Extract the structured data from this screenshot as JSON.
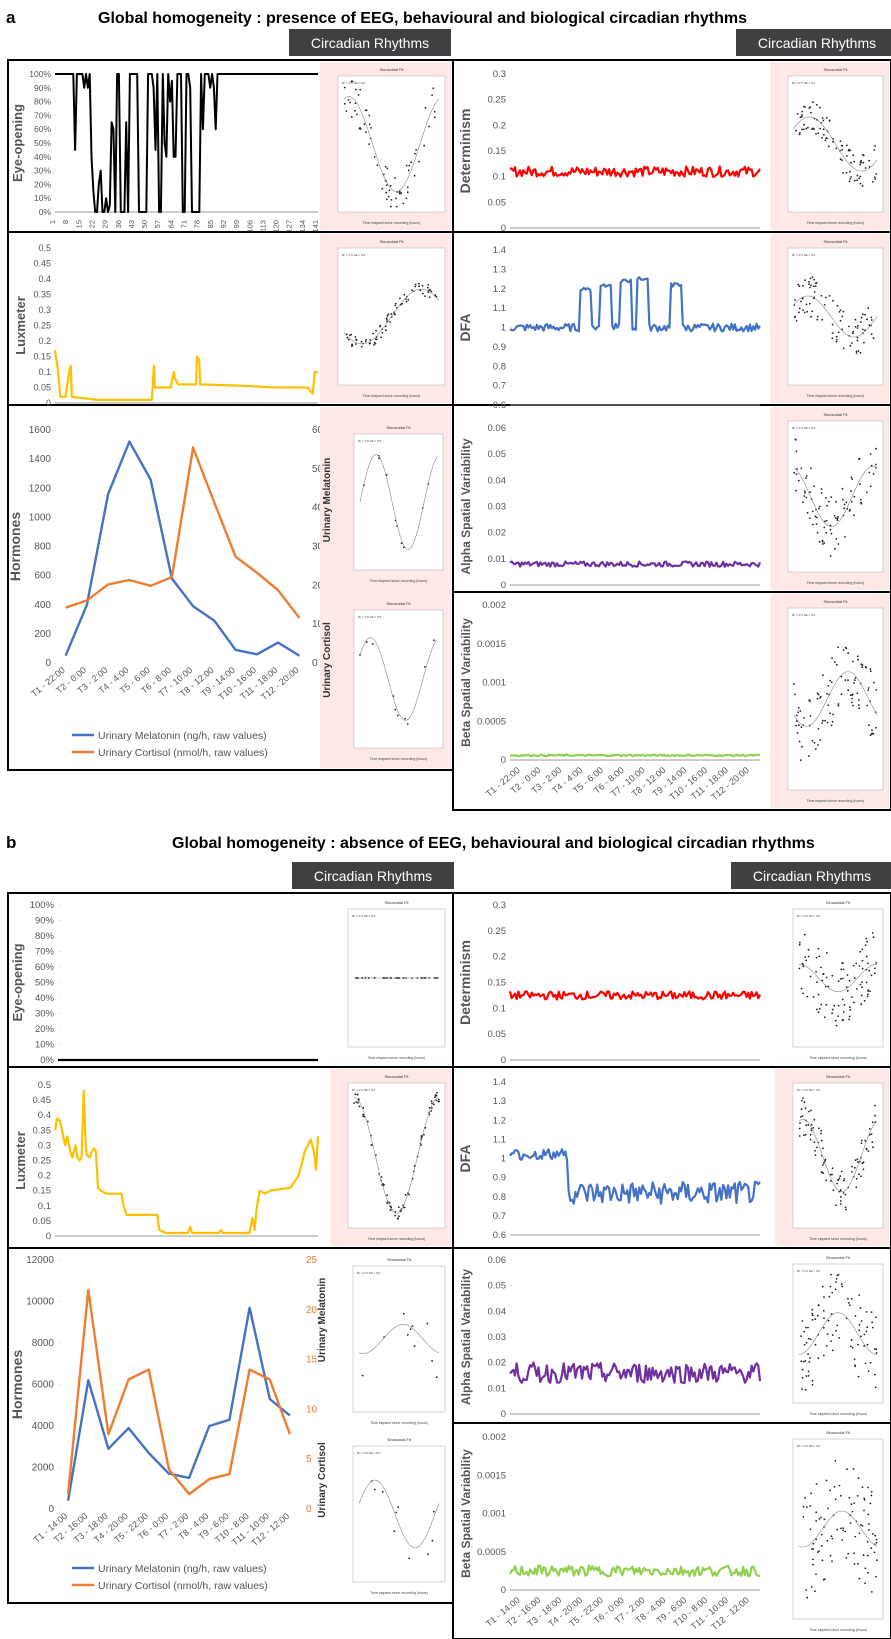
{
  "panels": [
    {
      "letter": "a",
      "title": "Global homogeneity : presence of EEG, behavioural and biological circadian rhythms",
      "banner": "Circadian Rhythms",
      "small_text": {
        "fit_title": "Sinusoidal Fit",
        "fit_xlabel": "Time elapsed since recording (hours)",
        "fit_stats": "R² = 0.5   SE = 0.0"
      }
    },
    {
      "letter": "b",
      "title": "Global homogeneity : absence of EEG, behavioural and biological circadian rhythms",
      "banner": "Circadian Rhythms",
      "small_text": {
        "fit_title": "Sinusoidal Fit",
        "fit_xlabel": "Time elapsed since recording (hours)",
        "fit_stats": "R² = 0.0   SE = 0.0"
      }
    }
  ],
  "chart_data": [
    {
      "id": "a-eye",
      "type": "line",
      "ylabel": "Eye-opening",
      "unit": "percent",
      "color": "#000000",
      "ylim": [
        0,
        100
      ],
      "yticks": [
        "0%",
        "10%",
        "20%",
        "30%",
        "40%",
        "50%",
        "60%",
        "70%",
        "80%",
        "90%",
        "100%"
      ],
      "xticks": [
        "1",
        "8",
        "15",
        "22",
        "29",
        "36",
        "43",
        "50",
        "57",
        "64",
        "71",
        "78",
        "85",
        "92",
        "99",
        "106",
        "113",
        "120",
        "127",
        "134",
        "141"
      ],
      "x_range": [
        1,
        145
      ],
      "values": [
        100,
        100,
        100,
        100,
        100,
        100,
        100,
        100,
        100,
        100,
        100,
        100,
        100,
        100,
        100,
        100,
        100,
        100,
        100,
        100,
        100,
        100,
        100,
        100,
        100,
        100,
        100,
        100,
        100,
        100,
        100,
        100,
        100,
        100,
        100,
        100,
        100,
        100,
        100,
        100,
        100,
        100,
        100,
        100,
        100,
        100,
        100,
        100,
        100,
        100,
        100,
        100,
        100,
        100,
        100,
        100,
        100,
        100,
        100,
        100,
        100,
        100,
        100,
        100,
        100,
        100,
        100,
        100,
        100,
        100,
        100,
        100,
        100,
        100,
        100,
        100,
        100,
        100,
        100,
        100,
        100,
        100,
        100,
        100,
        100,
        100,
        100,
        100,
        100,
        100,
        100,
        100,
        100,
        100,
        100,
        100,
        100,
        100,
        100,
        100,
        100,
        100,
        100,
        100,
        100,
        100,
        100,
        100,
        100,
        100,
        100,
        100,
        100,
        100,
        100,
        100,
        100,
        100,
        100,
        100,
        100,
        100,
        100,
        100,
        100,
        100,
        100,
        100,
        100,
        100,
        100,
        100,
        100,
        100,
        100,
        100,
        100,
        100,
        100,
        100,
        100,
        100,
        100,
        100,
        100
      ],
      "overrides": [
        [
          8,
          100
        ],
        [
          10,
          100
        ],
        [
          11,
          45
        ],
        [
          12,
          100
        ],
        [
          14,
          100
        ],
        [
          15,
          100
        ],
        [
          16,
          90
        ],
        [
          17,
          100
        ],
        [
          18,
          90
        ],
        [
          19,
          100
        ],
        [
          20,
          40
        ],
        [
          21,
          15
        ],
        [
          22,
          0
        ],
        [
          23,
          0
        ],
        [
          24,
          20
        ],
        [
          25,
          30
        ],
        [
          26,
          0
        ],
        [
          27,
          0
        ],
        [
          28,
          10
        ],
        [
          29,
          0
        ],
        [
          30,
          5
        ],
        [
          31,
          65
        ],
        [
          32,
          60
        ],
        [
          33,
          0
        ],
        [
          34,
          100
        ],
        [
          35,
          100
        ],
        [
          36,
          0
        ],
        [
          37,
          0
        ],
        [
          38,
          0
        ],
        [
          39,
          65
        ],
        [
          40,
          0
        ],
        [
          41,
          100
        ],
        [
          42,
          100
        ],
        [
          43,
          100
        ],
        [
          44,
          100
        ],
        [
          45,
          100
        ],
        [
          46,
          0
        ],
        [
          47,
          0
        ],
        [
          48,
          0
        ],
        [
          49,
          0
        ],
        [
          50,
          0
        ],
        [
          51,
          100
        ],
        [
          52,
          100
        ],
        [
          53,
          100
        ],
        [
          54,
          90
        ],
        [
          55,
          45
        ],
        [
          56,
          100
        ],
        [
          57,
          0
        ],
        [
          58,
          0
        ],
        [
          59,
          100
        ],
        [
          60,
          50
        ],
        [
          61,
          40
        ],
        [
          62,
          100
        ],
        [
          63,
          80
        ],
        [
          64,
          95
        ],
        [
          65,
          40
        ],
        [
          66,
          40
        ],
        [
          67,
          100
        ],
        [
          68,
          100
        ],
        [
          69,
          100
        ],
        [
          70,
          0
        ],
        [
          71,
          0
        ],
        [
          72,
          100
        ],
        [
          73,
          100
        ],
        [
          74,
          90
        ],
        [
          75,
          0
        ],
        [
          76,
          0
        ],
        [
          77,
          0
        ],
        [
          78,
          0
        ],
        [
          79,
          0
        ],
        [
          80,
          100
        ],
        [
          81,
          60
        ],
        [
          82,
          100
        ],
        [
          83,
          100
        ],
        [
          84,
          100
        ],
        [
          85,
          90
        ],
        [
          86,
          100
        ],
        [
          87,
          90
        ],
        [
          88,
          60
        ],
        [
          89,
          100
        ]
      ]
    },
    {
      "id": "a-lux",
      "type": "line",
      "ylabel": "Luxmeter",
      "color": "#FFC000",
      "ylim": [
        0,
        0.5
      ],
      "yticks": [
        "0",
        "0.05",
        "0.1",
        "0.15",
        "0.2",
        "0.25",
        "0.3",
        "0.35",
        "0.4",
        "0.45",
        "0.5"
      ],
      "segments": [
        [
          0,
          0.17
        ],
        [
          3,
          0.1
        ],
        [
          5,
          0.02
        ],
        [
          10,
          0.02
        ],
        [
          14,
          0.11
        ],
        [
          15,
          0.12
        ],
        [
          16,
          0.02
        ],
        [
          40,
          0.01
        ],
        [
          92,
          0.01
        ],
        [
          94,
          0.12
        ],
        [
          95,
          0.05
        ],
        [
          110,
          0.05
        ],
        [
          113,
          0.1
        ],
        [
          114,
          0.08
        ],
        [
          117,
          0.06
        ],
        [
          130,
          0.06
        ],
        [
          134,
          0.06
        ],
        [
          135,
          0.15
        ],
        [
          137,
          0.14
        ],
        [
          138,
          0.06
        ],
        [
          180,
          0.055
        ],
        [
          210,
          0.05
        ],
        [
          240,
          0.05
        ],
        [
          245,
          0.03
        ],
        [
          247,
          0.1
        ],
        [
          250,
          0.1
        ]
      ]
    },
    {
      "id": "a-hormones",
      "type": "line",
      "ylabel": "Hormones",
      "categories": [
        "T1 - 22:00",
        "T2 - 0:00",
        "T3 - 2:00",
        "T4 - 4:00",
        "T5 - 6:00",
        "T6 - 8:00",
        "T7 - 10:00",
        "T8 - 12:00",
        "T9 - 14:00",
        "T10 - 16:00",
        "T11 - 18:00",
        "T12 - 20:00"
      ],
      "ylim": [
        0,
        1600
      ],
      "yticks": [
        "0",
        "200",
        "400",
        "600",
        "800",
        "1000",
        "1200",
        "1400",
        "1600"
      ],
      "y2ticks": [
        "0",
        "10",
        "20",
        "30",
        "40",
        "50",
        "60"
      ],
      "series": [
        {
          "name": "Urinary Melatonin (ng/h, raw values)",
          "color": "#4472C4",
          "values": [
            50,
            400,
            1160,
            1520,
            1260,
            580,
            390,
            290,
            90,
            60,
            140,
            50
          ]
        },
        {
          "name": "Urinary Cortisol (nmol/h, raw values)",
          "color": "#ED7D31",
          "values": [
            380,
            430,
            540,
            570,
            530,
            590,
            1480,
            1100,
            730,
            620,
            500,
            310
          ]
        }
      ],
      "fit_labels": [
        "Urinary Melatonin",
        "Urinary Cortisol"
      ]
    },
    {
      "id": "a-det",
      "type": "line",
      "ylabel": "Determinism",
      "color": "#FF0000",
      "ylim": [
        0,
        0.3
      ],
      "yticks": [
        "0",
        "0.05",
        "0.1",
        "0.15",
        "0.2",
        "0.25",
        "0.3"
      ],
      "base": 0.11,
      "noise": 0.01
    },
    {
      "id": "a-dfa",
      "type": "line",
      "ylabel": "DFA",
      "color": "#4472C4",
      "ylim": [
        0.6,
        1.4
      ],
      "yticks": [
        "0.6",
        "0.7",
        "0.8",
        "0.9",
        "1",
        "1.1",
        "1.2",
        "1.3",
        "1.4"
      ],
      "base": 1.0,
      "noise": 0.02
    },
    {
      "id": "a-alpha",
      "type": "line",
      "ylabel": "Alpha Spatial Variability",
      "color": "#7030A0",
      "ylim": [
        0,
        0.06
      ],
      "yticks": [
        "0",
        "0.01",
        "0.02",
        "0.03",
        "0.04",
        "0.05",
        "0.06"
      ],
      "base": 0.008,
      "noise": 0.001
    },
    {
      "id": "a-beta",
      "type": "line",
      "ylabel": "Beta Spatial Variability",
      "color": "#92D050",
      "ylim": [
        0,
        0.002
      ],
      "yticks": [
        "0",
        "0.0005",
        "0.001",
        "0.0015",
        "0.002"
      ],
      "base": 6e-05,
      "noise": 1e-05,
      "categories": [
        "T1 - 22:00",
        "T2 - 0:00",
        "T3 - 2:00",
        "T4 - 4:00",
        "T5 - 6:00",
        "T6 - 8:00",
        "T7 - 10:00",
        "T8 - 12:00",
        "T9 - 14:00",
        "T10 - 16:00",
        "T11 - 18:00",
        "T12 - 20:00"
      ]
    },
    {
      "id": "b-eye",
      "type": "line",
      "ylabel": "Eye-opening",
      "color": "#000000",
      "ylim": [
        0,
        100
      ],
      "yticks": [
        "0%",
        "10%",
        "20%",
        "30%",
        "40%",
        "50%",
        "60%",
        "70%",
        "80%",
        "90%",
        "100%"
      ],
      "base": 0,
      "noise": 0
    },
    {
      "id": "b-lux",
      "type": "line",
      "ylabel": "Luxmeter",
      "color": "#FFC000",
      "ylim": [
        0,
        0.5
      ],
      "yticks": [
        "0",
        "0.05",
        "0.1",
        "0.15",
        "0.2",
        "0.25",
        "0.3",
        "0.35",
        "0.4",
        "0.45",
        "0.5"
      ],
      "segments": [
        [
          0,
          0.35
        ],
        [
          2,
          0.39
        ],
        [
          5,
          0.38
        ],
        [
          8,
          0.33
        ],
        [
          10,
          0.3
        ],
        [
          12,
          0.33
        ],
        [
          15,
          0.28
        ],
        [
          17,
          0.26
        ],
        [
          20,
          0.3
        ],
        [
          22,
          0.26
        ],
        [
          24,
          0.25
        ],
        [
          26,
          0.26
        ],
        [
          28,
          0.48
        ],
        [
          30,
          0.3
        ],
        [
          31,
          0.27
        ],
        [
          34,
          0.26
        ],
        [
          36,
          0.28
        ],
        [
          38,
          0.29
        ],
        [
          40,
          0.28
        ],
        [
          42,
          0.16
        ],
        [
          45,
          0.15
        ],
        [
          50,
          0.14
        ],
        [
          60,
          0.14
        ],
        [
          65,
          0.14
        ],
        [
          67,
          0.1
        ],
        [
          70,
          0.07
        ],
        [
          100,
          0.07
        ],
        [
          102,
          0.02
        ],
        [
          108,
          0.01
        ],
        [
          130,
          0.01
        ],
        [
          132,
          0.03
        ],
        [
          134,
          0.01
        ],
        [
          160,
          0.01
        ],
        [
          162,
          0.02
        ],
        [
          164,
          0.01
        ],
        [
          190,
          0.01
        ],
        [
          193,
          0.06
        ],
        [
          195,
          0.02
        ],
        [
          197,
          0.09
        ],
        [
          200,
          0.15
        ],
        [
          205,
          0.14
        ],
        [
          210,
          0.15
        ],
        [
          230,
          0.16
        ],
        [
          238,
          0.2
        ],
        [
          242,
          0.25
        ],
        [
          244,
          0.28
        ],
        [
          247,
          0.3
        ],
        [
          250,
          0.32
        ],
        [
          253,
          0.28
        ],
        [
          255,
          0.22
        ],
        [
          257,
          0.33
        ]
      ]
    },
    {
      "id": "b-hormones",
      "type": "line",
      "ylabel": "Hormones",
      "categories": [
        "T1 - 14:00",
        "T2 - 16:00",
        "T3 - 18:00",
        "T4 - 20:00",
        "T5 - 22:00",
        "T6 - 0:00",
        "T7 - 2:00",
        "T8 - 4:00",
        "T9 - 6:00",
        "T10 - 8:00",
        "T11 - 10:00",
        "T12 - 12:00"
      ],
      "ylim": [
        0,
        12000
      ],
      "yticks": [
        "0",
        "2000",
        "4000",
        "6000",
        "8000",
        "10000",
        "12000"
      ],
      "y2ticks": [
        "0",
        "5",
        "10",
        "15",
        "20",
        "25"
      ],
      "series": [
        {
          "name": "Urinary Melatonin (ng/h, raw values)",
          "color": "#4472C4",
          "values": [
            400,
            6200,
            2900,
            3900,
            2700,
            1700,
            1500,
            4000,
            4300,
            9700,
            5300,
            4500
          ]
        },
        {
          "name": "Urinary Cortisol (nmol/h, raw values)",
          "color": "#ED7D31",
          "values": [
            1.5,
            22,
            7.5,
            13,
            14,
            4,
            1.5,
            3,
            3.5,
            14,
            13,
            7.5
          ],
          "axis": "right",
          "y2lim": [
            0,
            25
          ]
        }
      ],
      "fit_labels": [
        "Urinary Melatonin",
        "Urinary Cortisol"
      ]
    },
    {
      "id": "b-det",
      "type": "line",
      "ylabel": "Determinism",
      "color": "#FF0000",
      "ylim": [
        0,
        0.3
      ],
      "yticks": [
        "0",
        "0.05",
        "0.1",
        "0.15",
        "0.2",
        "0.25",
        "0.3"
      ],
      "base": 0.125,
      "noise": 0.008
    },
    {
      "id": "b-dfa",
      "type": "line",
      "ylabel": "DFA",
      "color": "#4472C4",
      "ylim": [
        0.6,
        1.4
      ],
      "yticks": [
        "0.6",
        "0.7",
        "0.8",
        "0.9",
        "1",
        "1.1",
        "1.2",
        "1.3",
        "1.4"
      ],
      "base": 0.82,
      "noise": 0.06
    },
    {
      "id": "b-alpha",
      "type": "line",
      "ylabel": "Alpha Spatial Variability",
      "color": "#7030A0",
      "ylim": [
        0,
        0.06
      ],
      "yticks": [
        "0",
        "0.01",
        "0.02",
        "0.03",
        "0.04",
        "0.05",
        "0.06"
      ],
      "base": 0.016,
      "noise": 0.004
    },
    {
      "id": "b-beta",
      "type": "line",
      "ylabel": "Beta Spatial Variability",
      "color": "#92D050",
      "ylim": [
        0,
        0.002
      ],
      "yticks": [
        "0",
        "0.0005",
        "0.001",
        "0.0015",
        "0.002"
      ],
      "base": 0.00025,
      "noise": 7e-05,
      "categories": [
        "T1 - 14:00",
        "T2 - 16:00",
        "T3 - 18:00",
        "T4 - 20:00",
        "T5 - 22:00",
        "T6 - 0:00",
        "T7 - 2:00",
        "T8 - 4:00",
        "T9 - 6:00",
        "T10 - 8:00",
        "T11 - 10:00",
        "T12 - 12:00"
      ]
    }
  ]
}
